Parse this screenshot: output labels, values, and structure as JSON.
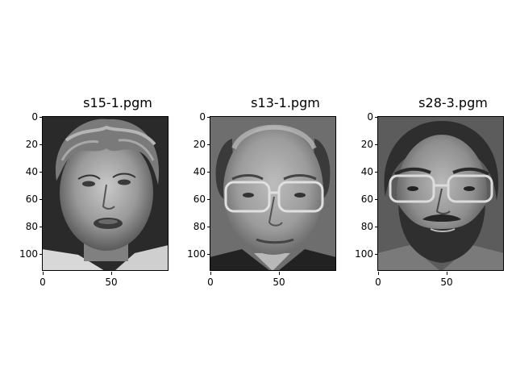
{
  "panels": [
    {
      "title": "s15-1.pgm",
      "subject": "young man with wavy light hair, open mouth",
      "yticks": [
        "0",
        "20",
        "40",
        "60",
        "80",
        "100"
      ],
      "xticks": [
        "0",
        "50"
      ]
    },
    {
      "title": "s13-1.pgm",
      "subject": "balding man with glasses",
      "yticks": [
        "0",
        "20",
        "40",
        "60",
        "80",
        "100"
      ],
      "xticks": [
        "0",
        "50"
      ]
    },
    {
      "title": "s28-3.pgm",
      "subject": "man with beard and glasses",
      "yticks": [
        "0",
        "20",
        "40",
        "60",
        "80",
        "100"
      ],
      "xticks": [
        "0",
        "50"
      ]
    }
  ],
  "colors": {
    "axis": "#000000",
    "background": "#ffffff"
  }
}
